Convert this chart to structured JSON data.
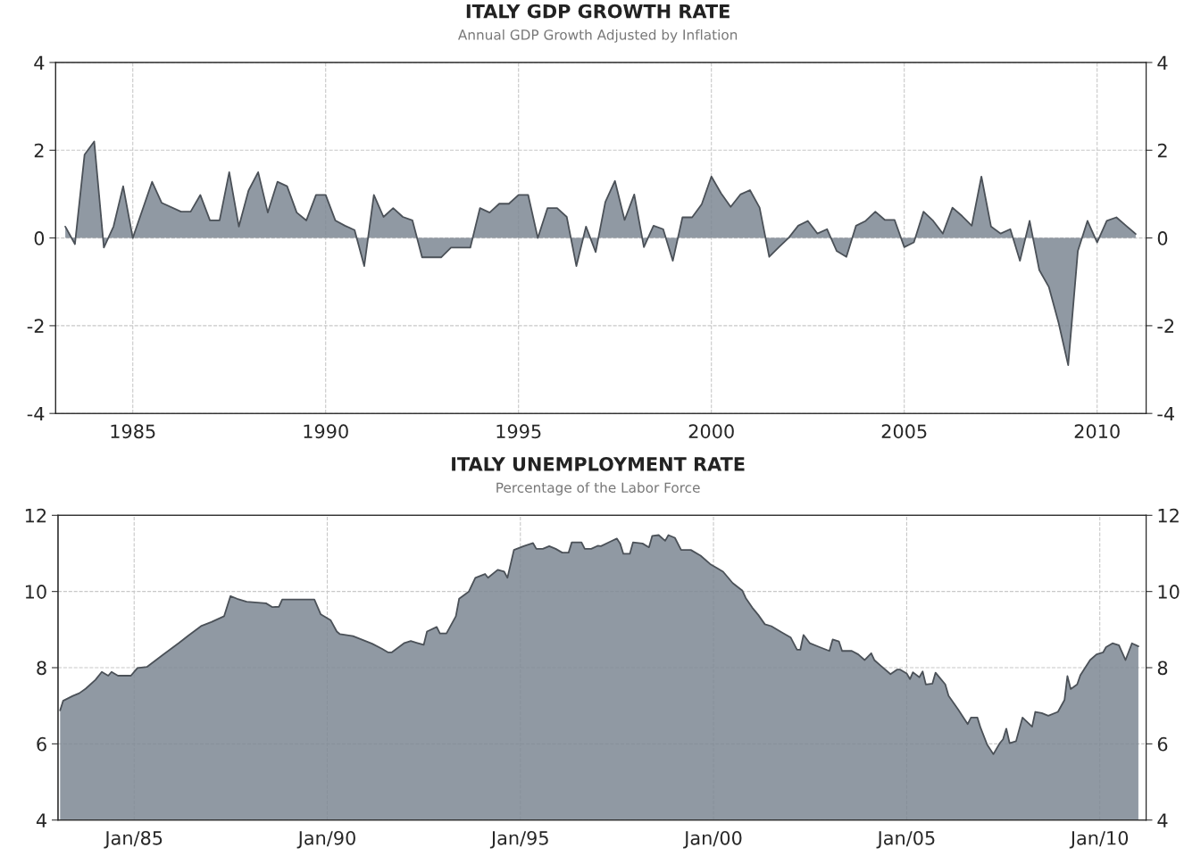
{
  "chart_data": [
    {
      "type": "area",
      "title": "ITALY GDP GROWTH RATE",
      "subtitle": "Annual GDP Growth Adjusted by Inflation",
      "xlim": [
        1983,
        2011.27
      ],
      "xticks": [
        1985,
        1990,
        1995,
        2000,
        2005,
        2010
      ],
      "ylim": [
        -4,
        4
      ],
      "yticks": [
        -4,
        -2,
        0,
        2,
        4
      ],
      "y2lim": [
        -4,
        4
      ],
      "y2ticks": [
        -4,
        -2,
        0,
        2,
        4
      ],
      "grid": true,
      "legend": false,
      "series": [
        {
          "color": "#7d8793",
          "x": [
            1983.25,
            1983.5,
            1983.75,
            1984.0,
            1984.25,
            1984.5,
            1984.75,
            1985.0,
            1985.5,
            1985.75,
            1986.25,
            1986.5,
            1986.75,
            1987.0,
            1987.25,
            1987.5,
            1987.75,
            1988.0,
            1988.25,
            1988.5,
            1988.75,
            1989.0,
            1989.25,
            1989.5,
            1989.75,
            1990.0,
            1990.25,
            1990.5,
            1990.75,
            1991.0,
            1991.25,
            1991.5,
            1991.75,
            1992.0,
            1992.25,
            1992.5,
            1992.75,
            1993.0,
            1993.25,
            1993.5,
            1993.75,
            1994.0,
            1994.25,
            1994.5,
            1994.75,
            1995.0,
            1995.25,
            1995.5,
            1995.75,
            1996.0,
            1996.25,
            1996.5,
            1996.75,
            1997.0,
            1997.25,
            1997.5,
            1997.75,
            1998.0,
            1998.25,
            1998.5,
            1998.75,
            1999.0,
            1999.25,
            1999.5,
            1999.75,
            2000.0,
            2000.25,
            2000.5,
            2000.75,
            2001.0,
            2001.25,
            2001.5,
            2001.75,
            2002.0,
            2002.25,
            2002.5,
            2002.75,
            2003.0,
            2003.25,
            2003.5,
            2003.75,
            2004.0,
            2004.25,
            2004.5,
            2004.75,
            2005.0,
            2005.25,
            2005.5,
            2005.75,
            2006.0,
            2006.25,
            2006.5,
            2006.75,
            2007.0,
            2007.25,
            2007.5,
            2007.75,
            2008.0,
            2008.25,
            2008.5,
            2008.75,
            2009.0,
            2009.25,
            2009.5,
            2009.75,
            2010.0,
            2010.25,
            2010.5,
            2010.75,
            2011.0
          ],
          "values": [
            0.26,
            -0.14,
            1.9,
            2.2,
            -0.22,
            0.26,
            1.18,
            0.0,
            1.28,
            0.8,
            0.6,
            0.6,
            0.98,
            0.4,
            0.4,
            1.5,
            0.26,
            1.08,
            1.5,
            0.58,
            1.28,
            1.18,
            0.58,
            0.4,
            0.98,
            0.98,
            0.4,
            0.28,
            0.18,
            -0.64,
            0.98,
            0.48,
            0.68,
            0.48,
            0.4,
            -0.44,
            -0.44,
            -0.44,
            -0.22,
            -0.22,
            -0.22,
            0.68,
            0.58,
            0.78,
            0.78,
            0.98,
            0.98,
            0.0,
            0.68,
            0.68,
            0.48,
            -0.64,
            0.26,
            -0.32,
            0.82,
            1.3,
            0.41,
            0.99,
            -0.21,
            0.28,
            0.2,
            -0.52,
            0.47,
            0.47,
            0.77,
            1.4,
            1.02,
            0.71,
            0.99,
            1.09,
            0.69,
            -0.43,
            -0.21,
            0.0,
            0.28,
            0.39,
            0.1,
            0.2,
            -0.3,
            -0.43,
            0.28,
            0.39,
            0.6,
            0.41,
            0.41,
            -0.21,
            -0.1,
            0.6,
            0.39,
            0.1,
            0.69,
            0.5,
            0.28,
            1.4,
            0.26,
            0.1,
            0.2,
            -0.52,
            0.39,
            -0.73,
            -1.12,
            -1.93,
            -2.9,
            -0.3,
            0.39,
            -0.1,
            0.39,
            0.47,
            0.28,
            0.09
          ]
        }
      ]
    },
    {
      "type": "area",
      "title": "ITALY UNEMPLOYMENT RATE",
      "subtitle": "Percentage of the Labor Force",
      "xlim": [
        "1983-01-12",
        "2011-03-15"
      ],
      "xticks": [
        {
          "value": "1985-01",
          "label": "Jan/85"
        },
        {
          "value": "1990-01",
          "label": "Jan/90"
        },
        {
          "value": "1995-01",
          "label": "Jan/95"
        },
        {
          "value": "2000-01",
          "label": "Jan/00"
        },
        {
          "value": "2005-01",
          "label": "Jan/05"
        },
        {
          "value": "2010-01",
          "label": "Jan/10"
        }
      ],
      "ylim": [
        4,
        12
      ],
      "yticks": [
        4,
        6,
        8,
        10,
        12
      ],
      "y2lim": [
        4,
        12
      ],
      "y2ticks": [
        4,
        6,
        8,
        10,
        12
      ],
      "grid": true,
      "legend": false,
      "series": [
        {
          "color": "#7d8793",
          "x": [
            "1983-02",
            "1983-03",
            "1983-06",
            "1983-08",
            "1983-10",
            "1984-01",
            "1984-03",
            "1984-05",
            "1984-06",
            "1984-08",
            "1984-12",
            "1985-02",
            "1985-05",
            "1985-10",
            "1986-03",
            "1986-06",
            "1986-10",
            "1987-01",
            "1987-05",
            "1987-07",
            "1987-09",
            "1987-12",
            "1988-06",
            "1988-08",
            "1988-10",
            "1988-11",
            "1989-09",
            "1989-11",
            "1990-02",
            "1990-04",
            "1990-05",
            "1990-09",
            "1990-12",
            "1991-03",
            "1991-06",
            "1991-08",
            "1991-09",
            "1992-01",
            "1992-03",
            "1992-05",
            "1992-07",
            "1992-08",
            "1992-11",
            "1992-12",
            "1993-02",
            "1993-05",
            "1993-06",
            "1993-09",
            "1993-11",
            "1994-02",
            "1994-03",
            "1994-06",
            "1994-08",
            "1994-09",
            "1994-11",
            "1995-02",
            "1995-05",
            "1995-06",
            "1995-08",
            "1995-10",
            "1995-12",
            "1996-02",
            "1996-04",
            "1996-05",
            "1996-08",
            "1996-09",
            "1996-11",
            "1997-01",
            "1997-02",
            "1997-05",
            "1997-07",
            "1997-08",
            "1997-09",
            "1997-11",
            "1997-12",
            "1998-03",
            "1998-05",
            "1998-06",
            "1998-08",
            "1998-10",
            "1998-11",
            "1999-01",
            "1999-03",
            "1999-06",
            "1999-09",
            "1999-12",
            "2000-02",
            "2000-04",
            "2000-07",
            "2000-10",
            "2000-11",
            "2001-01",
            "2001-03",
            "2001-05",
            "2001-07",
            "2001-10",
            "2002-01",
            "2002-03",
            "2002-04",
            "2002-05",
            "2002-07",
            "2002-10",
            "2003-01",
            "2003-02",
            "2003-04",
            "2003-05",
            "2003-08",
            "2003-10",
            "2003-12",
            "2004-02",
            "2004-03",
            "2004-05",
            "2004-08",
            "2004-10",
            "2004-11",
            "2005-01",
            "2005-02",
            "2005-03",
            "2005-05",
            "2005-06",
            "2005-07",
            "2005-09",
            "2005-10",
            "2006-01",
            "2006-02",
            "2006-05",
            "2006-08",
            "2006-09",
            "2006-11",
            "2006-12",
            "2007-02",
            "2007-04",
            "2007-06",
            "2007-07",
            "2007-08",
            "2007-09",
            "2007-11",
            "2008-01",
            "2008-04",
            "2008-05",
            "2008-07",
            "2008-09",
            "2008-12",
            "2009-02",
            "2009-03",
            "2009-04",
            "2009-06",
            "2009-07",
            "2009-10",
            "2009-12",
            "2010-02",
            "2010-03",
            "2010-05",
            "2010-07",
            "2010-09",
            "2010-11",
            "2011-01"
          ],
          "values": [
            6.88,
            7.13,
            7.26,
            7.33,
            7.45,
            7.68,
            7.89,
            7.79,
            7.89,
            7.79,
            7.79,
            7.99,
            8.02,
            8.34,
            8.65,
            8.85,
            9.1,
            9.2,
            9.35,
            9.88,
            9.81,
            9.73,
            9.69,
            9.59,
            9.6,
            9.79,
            9.79,
            9.4,
            9.25,
            8.95,
            8.88,
            8.83,
            8.73,
            8.63,
            8.5,
            8.4,
            8.4,
            8.65,
            8.7,
            8.65,
            8.6,
            8.95,
            9.07,
            8.9,
            8.9,
            9.35,
            9.81,
            10.0,
            10.36,
            10.46,
            10.36,
            10.57,
            10.52,
            10.36,
            11.09,
            11.19,
            11.27,
            11.12,
            11.12,
            11.19,
            11.12,
            11.02,
            11.02,
            11.29,
            11.29,
            11.12,
            11.12,
            11.2,
            11.19,
            11.31,
            11.39,
            11.26,
            10.99,
            10.99,
            11.29,
            11.26,
            11.16,
            11.46,
            11.48,
            11.33,
            11.48,
            11.41,
            11.09,
            11.09,
            10.94,
            10.72,
            10.62,
            10.52,
            10.22,
            10.02,
            9.83,
            9.58,
            9.38,
            9.14,
            9.09,
            8.94,
            8.79,
            8.47,
            8.47,
            8.86,
            8.64,
            8.54,
            8.44,
            8.74,
            8.69,
            8.44,
            8.44,
            8.35,
            8.2,
            8.38,
            8.2,
            8.05,
            7.83,
            7.95,
            7.95,
            7.85,
            7.7,
            7.88,
            7.75,
            7.9,
            7.56,
            7.58,
            7.87,
            7.56,
            7.26,
            6.91,
            6.52,
            6.69,
            6.69,
            6.42,
            5.98,
            5.73,
            6.02,
            6.12,
            6.4,
            6.02,
            6.07,
            6.69,
            6.45,
            6.84,
            6.81,
            6.74,
            6.84,
            7.15,
            7.78,
            7.44,
            7.56,
            7.8,
            8.2,
            8.35,
            8.4,
            8.54,
            8.64,
            8.59,
            8.2,
            8.64,
            8.56
          ]
        }
      ]
    }
  ]
}
